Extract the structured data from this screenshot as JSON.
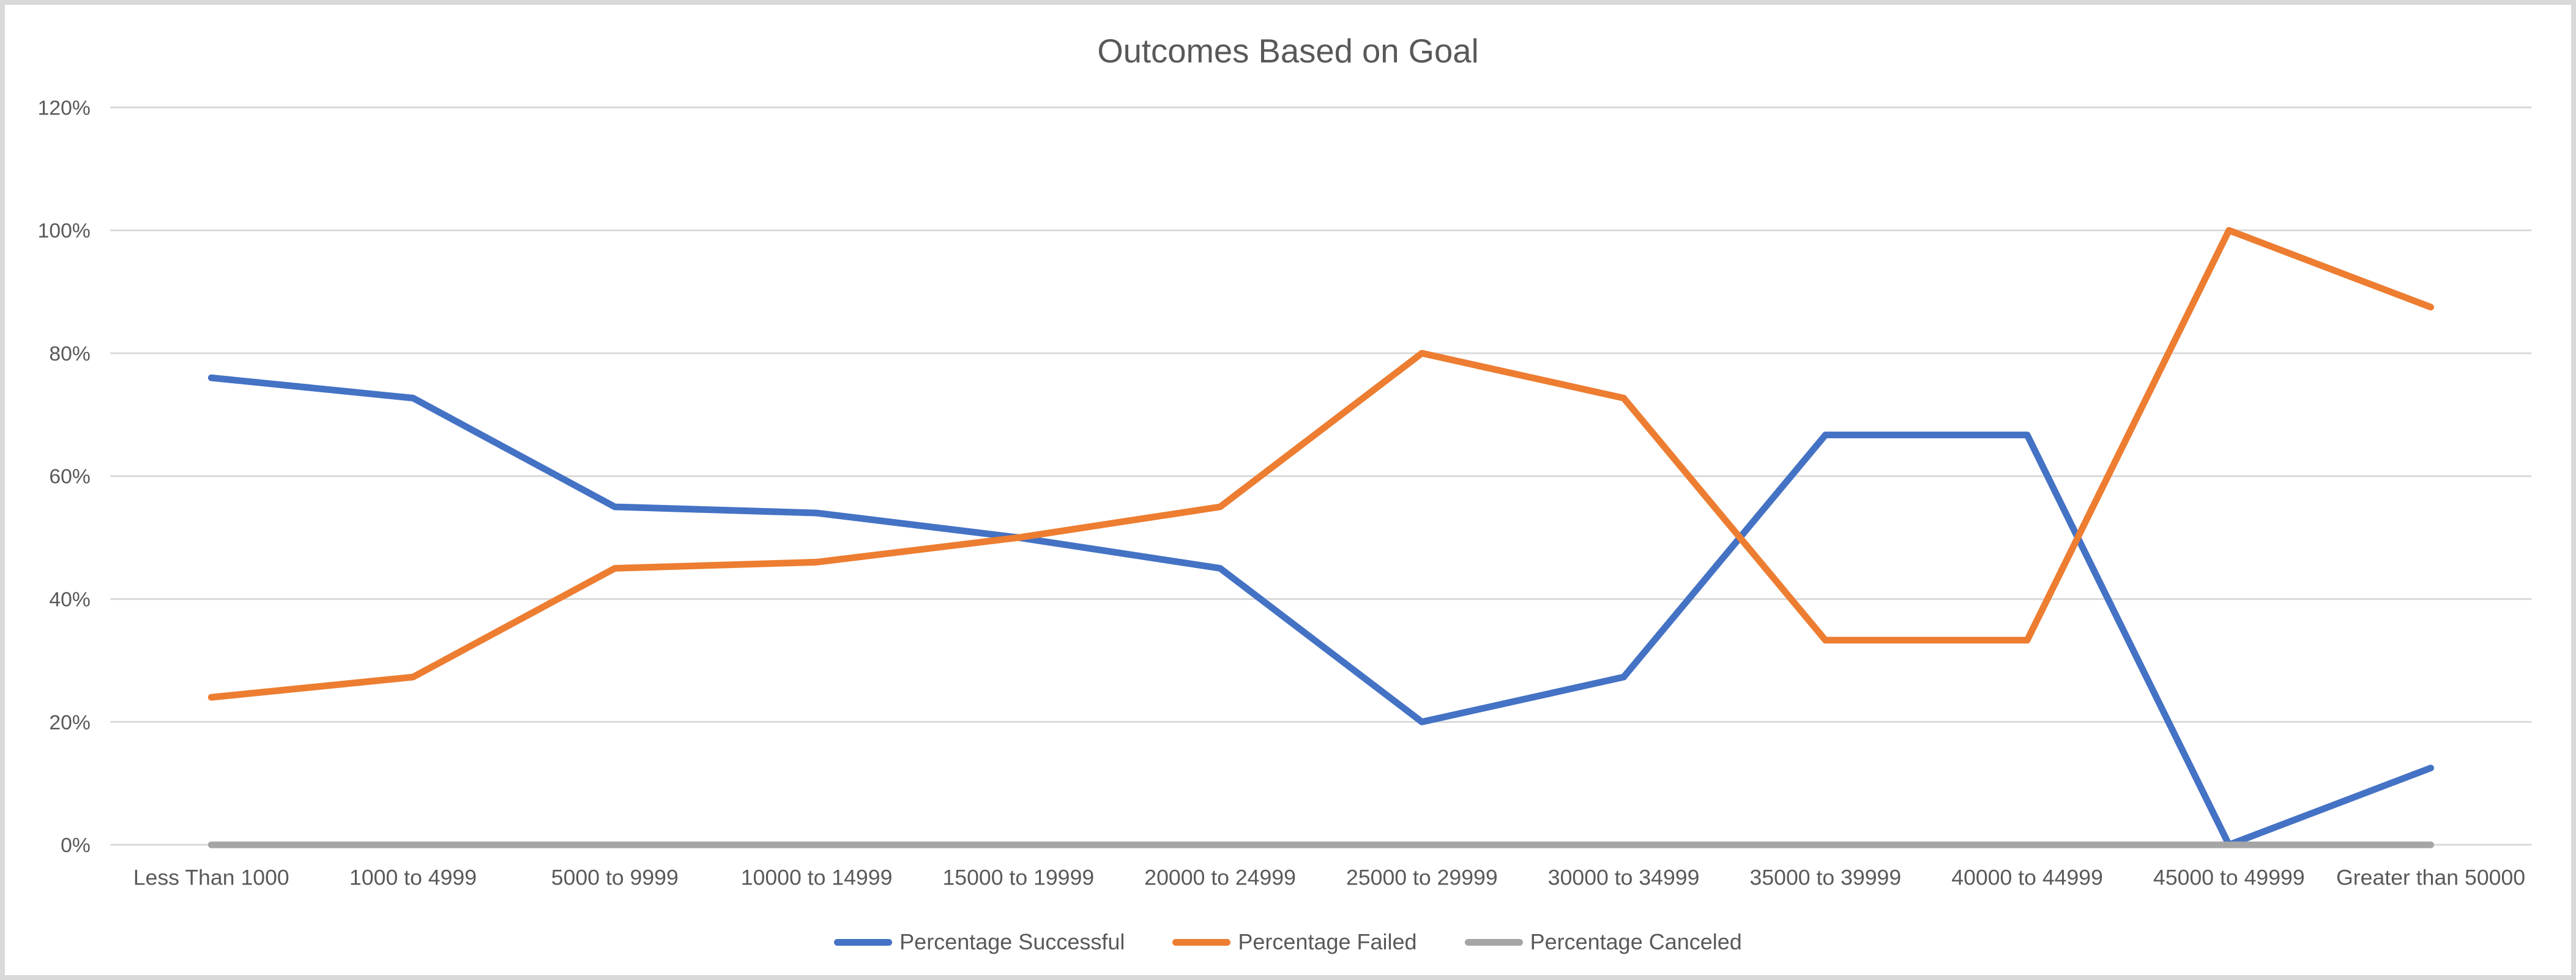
{
  "window": {
    "background": "#FFFFFF",
    "border_color": "#D9D9D9"
  },
  "chart_data": {
    "type": "line",
    "title": "Outcomes Based on Goal",
    "categories": [
      "Less Than 1000",
      "1000 to 4999",
      "5000 to 9999",
      "10000 to 14999",
      "15000 to 19999",
      "20000 to 24999",
      "25000 to 29999",
      "30000 to 34999",
      "35000 to 39999",
      "40000 to 44999",
      "45000 to 49999",
      "Greater than 50000"
    ],
    "series": [
      {
        "name": "Percentage Successful",
        "color": "#4472C4",
        "values": [
          76,
          72.7,
          55,
          54,
          50,
          45,
          20,
          27.3,
          66.7,
          66.7,
          0,
          12.5
        ]
      },
      {
        "name": "Percentage Failed",
        "color": "#ED7D31",
        "values": [
          24,
          27.3,
          45,
          46,
          50,
          55,
          80,
          72.7,
          33.3,
          33.3,
          100,
          87.5
        ]
      },
      {
        "name": "Percentage Canceled",
        "color": "#A5A5A5",
        "values": [
          0,
          0,
          0,
          0,
          0,
          0,
          0,
          0,
          0,
          0,
          0,
          0
        ]
      }
    ],
    "xlabel": "",
    "ylabel": "",
    "ylim": [
      0,
      120
    ],
    "ytick_step": 20,
    "ytick_labels": [
      "0%",
      "20%",
      "40%",
      "60%",
      "80%",
      "100%",
      "120%"
    ],
    "grid": true,
    "legend_position": "bottom",
    "text_color": "#595959",
    "gridline_color": "#D9D9D9"
  }
}
